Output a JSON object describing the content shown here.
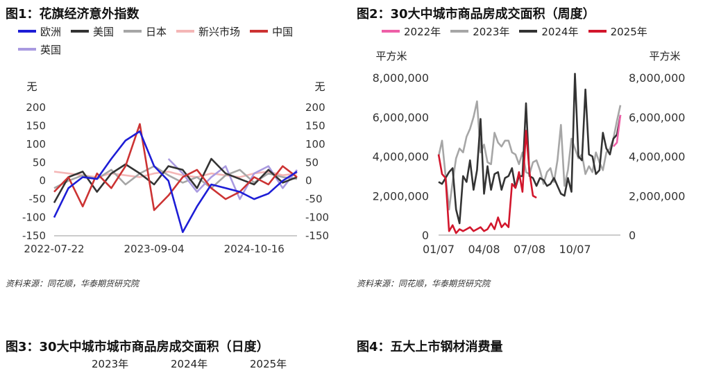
{
  "panels": {
    "p1": {
      "title": "图1：花旗经济意外指数"
    },
    "p2": {
      "title": "图2：30大中城市商品房成交面积（周度）"
    },
    "p3": {
      "title": "图3：30大中城市城市商品房成交面积（日度）",
      "legend_partial": [
        "2023年",
        "2024年",
        "2025年"
      ]
    },
    "p4": {
      "title": "图4：五大上市钢材消费量"
    }
  },
  "source": "资料来源：同花顺，华泰期货研究院",
  "chart_data": [
    {
      "type": "line",
      "ylabel_left": "无",
      "ylabel_right": "无",
      "ylim": [
        -150,
        200
      ],
      "yticks": [
        -150,
        -100,
        -50,
        0,
        50,
        100,
        150,
        200
      ],
      "xticks": [
        "2022-07-22",
        "2023-09-04",
        "2024-10-16"
      ],
      "x": [
        0,
        2,
        4,
        6,
        8,
        10,
        12,
        14,
        16,
        18,
        20,
        22,
        24,
        26,
        28,
        30,
        32,
        34
      ],
      "series": [
        {
          "name": "欧洲",
          "color": "#1d1dd6",
          "values": [
            -100,
            -20,
            10,
            5,
            60,
            110,
            135,
            40,
            0,
            -140,
            -70,
            -10,
            -20,
            -30,
            -50,
            -35,
            0,
            25
          ]
        },
        {
          "name": "美国",
          "color": "#333333",
          "values": [
            -60,
            10,
            25,
            -30,
            20,
            45,
            20,
            -10,
            40,
            30,
            -20,
            60,
            20,
            5,
            -10,
            30,
            -5,
            10
          ]
        },
        {
          "name": "日本",
          "color": "#a6a6a6",
          "values": [
            -20,
            0,
            15,
            5,
            30,
            -10,
            20,
            40,
            15,
            -5,
            10,
            -20,
            15,
            30,
            -5,
            20,
            10,
            5
          ]
        },
        {
          "name": "新兴市场",
          "color": "#f4b6b6",
          "values": [
            25,
            20,
            15,
            10,
            20,
            15,
            10,
            20,
            25,
            15,
            10,
            20,
            15,
            10,
            20,
            25,
            15,
            20
          ]
        },
        {
          "name": "中国",
          "color": "#cc3333",
          "values": [
            -30,
            10,
            -70,
            20,
            -20,
            40,
            155,
            -80,
            -40,
            10,
            30,
            -20,
            -50,
            -30,
            10,
            -10,
            40,
            10
          ]
        },
        {
          "name": "英国",
          "color": "#a99ae0",
          "values": [
            null,
            null,
            null,
            null,
            null,
            null,
            null,
            null,
            60,
            20,
            -30,
            10,
            40,
            -50,
            20,
            40,
            -20,
            30
          ]
        }
      ]
    },
    {
      "type": "line",
      "ylabel_left": "平方米",
      "ylabel_right": "平方米",
      "ylim": [
        0,
        8000000
      ],
      "yticks": [
        0,
        2000000,
        4000000,
        6000000,
        8000000
      ],
      "ytick_labels": [
        "0",
        "2,000,000",
        "4,000,000",
        "6,000,000",
        "8,000,000"
      ],
      "xticks": [
        "01/07",
        "04/08",
        "07/08",
        "10/07"
      ],
      "xtick_pos": [
        0,
        13,
        26,
        39
      ],
      "series": [
        {
          "name": "2022年",
          "color": "#ee5fa7",
          "x": [
            50,
            51,
            52
          ],
          "values": [
            4500000,
            4700000,
            6100000
          ]
        },
        {
          "name": "2023年",
          "color": "#a6a6a6",
          "x": [
            0,
            1,
            2,
            3,
            4,
            5,
            6,
            7,
            8,
            9,
            10,
            11,
            12,
            13,
            14,
            15,
            16,
            17,
            18,
            19,
            20,
            21,
            22,
            23,
            24,
            25,
            26,
            27,
            28,
            29,
            30,
            31,
            32,
            33,
            34,
            35,
            36,
            37,
            38,
            39,
            40,
            41,
            42,
            43,
            44,
            45,
            46,
            47,
            48,
            49,
            50,
            51,
            52
          ],
          "values": [
            4000000,
            4800000,
            3000000,
            1300000,
            2700000,
            3900000,
            4400000,
            4200000,
            5000000,
            5400000,
            6000000,
            6800000,
            4200000,
            4600000,
            3700000,
            3600000,
            5200000,
            4700000,
            4500000,
            4800000,
            4800000,
            4200000,
            4100000,
            3600000,
            4200000,
            3200000,
            3100000,
            3700000,
            3800000,
            3300000,
            2600000,
            3200000,
            3400000,
            2700000,
            3800000,
            5600000,
            2500000,
            3300000,
            4900000,
            4400000,
            3900000,
            4100000,
            3100000,
            3500000,
            3200000,
            4200000,
            3700000,
            3300000,
            4200000,
            4400000,
            4900000,
            5800000,
            6600000
          ]
        },
        {
          "name": "2024年",
          "color": "#333333",
          "x": [
            0,
            1,
            2,
            3,
            4,
            5,
            6,
            7,
            8,
            9,
            10,
            11,
            12,
            13,
            14,
            15,
            16,
            17,
            18,
            19,
            20,
            21,
            22,
            23,
            24,
            25,
            26,
            27,
            28,
            29,
            30,
            31,
            32,
            33,
            34,
            35,
            36,
            37,
            38,
            39,
            40,
            41,
            42,
            43,
            44,
            45,
            46,
            47,
            48,
            49,
            50,
            51,
            52
          ],
          "values": [
            2700000,
            2600000,
            2900000,
            3200000,
            3400000,
            1300000,
            600000,
            3000000,
            2700000,
            3800000,
            2300000,
            3300000,
            5900000,
            2100000,
            3500000,
            2300000,
            3100000,
            3200000,
            2300000,
            2900000,
            3000000,
            3400000,
            2400000,
            3000000,
            3000000,
            6700000,
            3000000,
            2900000,
            2500000,
            2900000,
            2800000,
            2500000,
            2600000,
            2900000,
            2500000,
            2100000,
            2000000,
            2900000,
            2200000,
            8200000,
            4000000,
            3800000,
            7400000,
            4100000,
            4000000,
            3100000,
            3300000,
            5200000,
            4400000,
            4100000,
            4900000,
            5100000,
            6100000
          ]
        },
        {
          "name": "2025年",
          "color": "#d2162c",
          "x": [
            0,
            1,
            2,
            3,
            4,
            5,
            6,
            7,
            8,
            9,
            10,
            11,
            12,
            13,
            14,
            15,
            16,
            17,
            18,
            19,
            20,
            21,
            22,
            23,
            24,
            25,
            26,
            27,
            28
          ],
          "values": [
            4100000,
            3100000,
            2900000,
            200000,
            500000,
            100000,
            300000,
            200000,
            300000,
            400000,
            200000,
            300000,
            400000,
            200000,
            300000,
            600000,
            300000,
            900000,
            400000,
            600000,
            400000,
            2600000,
            2400000,
            3200000,
            2200000,
            5300000,
            3200000,
            2000000,
            1900000
          ]
        }
      ]
    }
  ]
}
